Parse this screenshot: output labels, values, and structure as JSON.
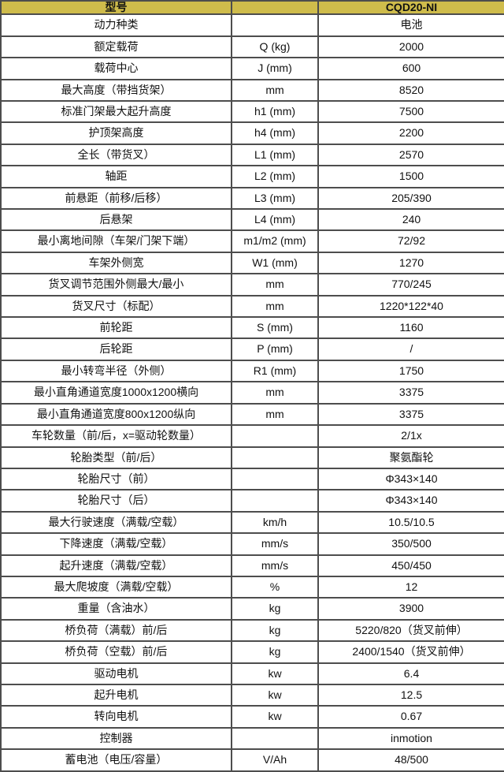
{
  "colors": {
    "header_bg": "#cfbc4b",
    "border": "#4d4d4d",
    "row_bg": "#ffffff",
    "text": "#111111"
  },
  "table": {
    "header": {
      "label": "型号",
      "unit": "",
      "model": "CQD20-NI"
    },
    "rows": [
      {
        "label": "动力种类",
        "unit": "",
        "value": "电池"
      },
      {
        "label": "额定载荷",
        "unit": "Q (kg)",
        "value": "2000"
      },
      {
        "label": "载荷中心",
        "unit": "J (mm)",
        "value": "600"
      },
      {
        "label": "最大高度（带挡货架）",
        "unit": "mm",
        "value": "8520"
      },
      {
        "label": "标准门架最大起升高度",
        "unit": "h1 (mm)",
        "value": "7500"
      },
      {
        "label": "护顶架高度",
        "unit": "h4 (mm)",
        "value": "2200"
      },
      {
        "label": "全长（带货叉）",
        "unit": "L1 (mm)",
        "value": "2570"
      },
      {
        "label": "轴距",
        "unit": "L2 (mm)",
        "value": "1500"
      },
      {
        "label": "前悬距（前移/后移）",
        "unit": "L3 (mm)",
        "value": "205/390"
      },
      {
        "label": "后悬架",
        "unit": "L4 (mm)",
        "value": "240"
      },
      {
        "label": "最小离地间隙（车架/门架下端）",
        "unit": "m1/m2 (mm)",
        "value": "72/92"
      },
      {
        "label": "车架外侧宽",
        "unit": "W1 (mm)",
        "value": "1270"
      },
      {
        "label": "货叉调节范围外侧最大/最小",
        "unit": "mm",
        "value": "770/245"
      },
      {
        "label": "货叉尺寸（标配）",
        "unit": "mm",
        "value": "1220*122*40"
      },
      {
        "label": "前轮距",
        "unit": "S (mm)",
        "value": "1160"
      },
      {
        "label": "后轮距",
        "unit": "P (mm)",
        "value": "/"
      },
      {
        "label": "最小转弯半径（外侧）",
        "unit": "R1 (mm)",
        "value": "1750"
      },
      {
        "label": "最小直角通道宽度1000x1200横向",
        "unit": "mm",
        "value": "3375"
      },
      {
        "label": "最小直角通道宽度800x1200纵向",
        "unit": "mm",
        "value": "3375"
      },
      {
        "label": "车轮数量（前/后，x=驱动轮数量）",
        "unit": "",
        "value": "2/1x"
      },
      {
        "label": "轮胎类型（前/后）",
        "unit": "",
        "value": "聚氨酯轮"
      },
      {
        "label": "轮胎尺寸（前）",
        "unit": "",
        "value": "Φ343×140"
      },
      {
        "label": "轮胎尺寸（后）",
        "unit": "",
        "value": "Φ343×140"
      },
      {
        "label": "最大行驶速度（满载/空载）",
        "unit": "km/h",
        "value": "10.5/10.5"
      },
      {
        "label": "下降速度（满载/空载）",
        "unit": "mm/s",
        "value": "350/500"
      },
      {
        "label": "起升速度（满载/空载）",
        "unit": "mm/s",
        "value": "450/450"
      },
      {
        "label": "最大爬坡度（满载/空载）",
        "unit": "%",
        "value": "12"
      },
      {
        "label": "重量（含油水）",
        "unit": "kg",
        "value": "3900"
      },
      {
        "label": "桥负荷（满载）前/后",
        "unit": "kg",
        "value": "5220/820（货叉前伸）"
      },
      {
        "label": "桥负荷（空载）前/后",
        "unit": "kg",
        "value": "2400/1540（货叉前伸）"
      },
      {
        "label": "驱动电机",
        "unit": "kw",
        "value": "6.4"
      },
      {
        "label": "起升电机",
        "unit": "kw",
        "value": "12.5"
      },
      {
        "label": "转向电机",
        "unit": "kw",
        "value": "0.67"
      },
      {
        "label": "控制器",
        "unit": "",
        "value": "inmotion"
      },
      {
        "label": "蓄电池（电压/容量）",
        "unit": "V/Ah",
        "value": "48/500"
      }
    ]
  }
}
